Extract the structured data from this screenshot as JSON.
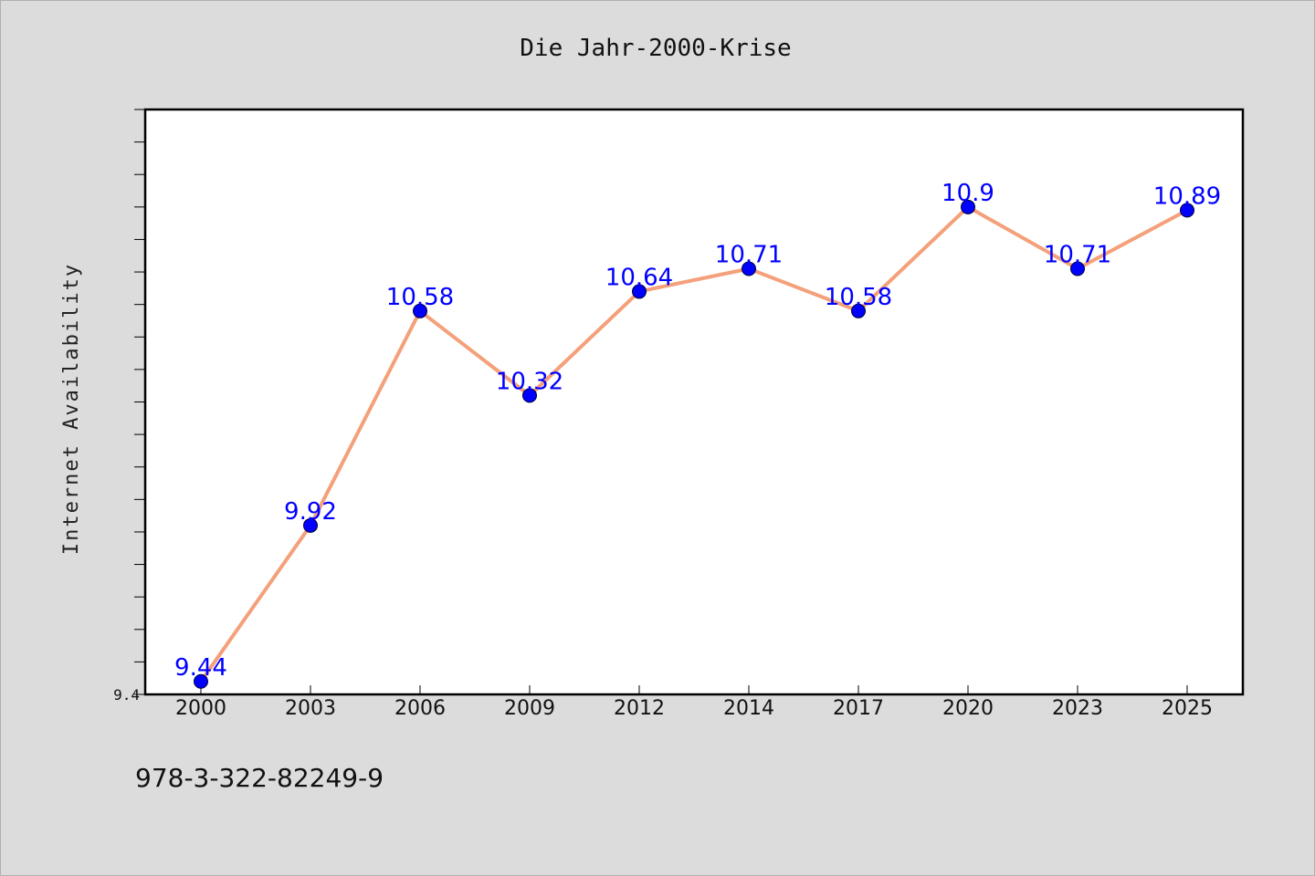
{
  "chart_data": {
    "type": "line",
    "title": "Die Jahr-2000-Krise",
    "xlabel": "",
    "ylabel": "Internet Availability",
    "categories": [
      "2000",
      "2003",
      "2006",
      "2009",
      "2012",
      "2014",
      "2017",
      "2020",
      "2023",
      "2025"
    ],
    "series": [
      {
        "values": [
          9.44,
          9.92,
          10.58,
          10.32,
          10.64,
          10.71,
          10.58,
          10.9,
          10.71,
          10.89
        ],
        "data_labels": [
          "9.44",
          "9.92",
          "10.58",
          "10.32",
          "10.64",
          "10.71",
          "10.58",
          "10.9",
          "10.71",
          "10.89"
        ],
        "line_color": "#f4a07a",
        "marker_color": "#0000ff"
      }
    ],
    "ylim": [
      9.4,
      11.2
    ],
    "ytick_labels": [
      "9.4"
    ],
    "grid": false,
    "legend": "none"
  },
  "footer": {
    "code": "978-3-322-82249-9"
  }
}
